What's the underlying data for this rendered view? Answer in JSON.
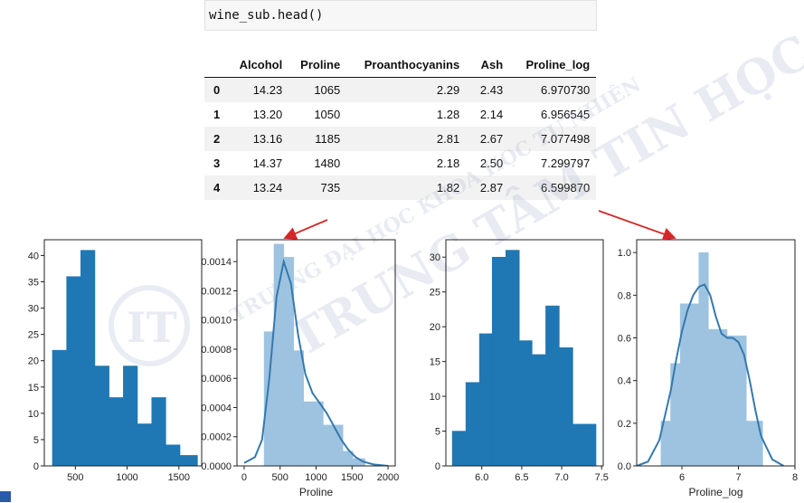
{
  "code": "wine_sub.head()",
  "table": {
    "columns": [
      "",
      "Alcohol",
      "Proline",
      "Proanthocyanins",
      "Ash",
      "Proline_log"
    ],
    "rows": [
      [
        "0",
        "14.23",
        "1065",
        "2.29",
        "2.43",
        "6.970730"
      ],
      [
        "1",
        "13.20",
        "1050",
        "1.28",
        "2.14",
        "6.956545"
      ],
      [
        "2",
        "13.16",
        "1185",
        "2.81",
        "2.67",
        "7.077498"
      ],
      [
        "3",
        "14.37",
        "1480",
        "2.18",
        "2.50",
        "7.299797"
      ],
      [
        "4",
        "13.24",
        "735",
        "1.82",
        "2.87",
        "6.599870"
      ]
    ]
  },
  "watermark": {
    "line1": "TRƯỜNG ĐẠI HỌC KHOA HỌC TỰ NHIÊN",
    "line2": "TRUNG TÂM TIN HỌC",
    "logo_letters": "IT"
  },
  "colors": {
    "hist_dark": "#1f77b4",
    "hist_light": "#9dc3e0",
    "kde": "#3579ad",
    "arrow": "#d62728"
  },
  "chart_data": [
    {
      "type": "bar",
      "title": "",
      "xlabel": "",
      "ylabel": "",
      "bin_edges": [
        278,
        415,
        552,
        689,
        826,
        963,
        1100,
        1237,
        1374,
        1511,
        1680
      ],
      "values": [
        22,
        36,
        41,
        19,
        13,
        19,
        8,
        13,
        4,
        2
      ],
      "xlim": [
        200,
        1720
      ],
      "ylim": [
        0,
        43
      ],
      "xticks": [
        500,
        1000,
        1500
      ],
      "yticks": [
        0,
        5,
        10,
        15,
        20,
        25,
        30,
        35,
        40
      ]
    },
    {
      "type": "area",
      "title": "",
      "xlabel": "Proline",
      "ylabel": "",
      "bin_edges": [
        278,
        415,
        552,
        689,
        826,
        963,
        1100,
        1237,
        1374,
        1511,
        1680
      ],
      "density": [
        0.00092,
        0.00152,
        0.00143,
        0.00079,
        0.00044,
        0.00044,
        0.00028,
        0.00028,
        0.0001,
        5e-05
      ],
      "kde": {
        "x": [
          0,
          150,
          250,
          350,
          450,
          550,
          650,
          750,
          850,
          950,
          1050,
          1150,
          1250,
          1350,
          1450,
          1550,
          1650,
          1800,
          2000
        ],
        "y": [
          2e-05,
          6e-05,
          0.00018,
          0.0006,
          0.00116,
          0.0014,
          0.00125,
          0.0009,
          0.00063,
          0.0005,
          0.00043,
          0.00036,
          0.00027,
          0.00018,
          0.00011,
          6e-05,
          3e-05,
          1e-05,
          0.0
        ]
      },
      "xlim": [
        -100,
        2100
      ],
      "ylim": [
        0,
        0.00155
      ],
      "xticks": [
        0,
        500,
        1000,
        1500,
        2000
      ],
      "yticks": [
        0.0,
        0.0002,
        0.0004,
        0.0006,
        0.0008,
        0.001,
        0.0012,
        0.0014
      ],
      "ytick_labels": [
        "0.0000",
        "0.0002",
        "0.0004",
        "0.0006",
        "0.0008",
        "0.0010",
        "0.0012",
        "0.0014"
      ]
    },
    {
      "type": "bar",
      "title": "",
      "xlabel": "",
      "ylabel": "",
      "bin_edges": [
        5.63,
        5.8,
        5.97,
        6.13,
        6.3,
        6.47,
        6.63,
        6.8,
        6.97,
        7.14,
        7.31,
        7.43
      ],
      "values": [
        5,
        12,
        19,
        30,
        31,
        18,
        16,
        23,
        17,
        6,
        6
      ],
      "xlim": [
        5.55,
        7.52
      ],
      "ylim": [
        0,
        32.5
      ],
      "xticks": [
        6.0,
        6.5,
        7.0,
        7.5
      ],
      "xtick_labels": [
        "6.0",
        "6.5",
        "7.0",
        "7.5"
      ],
      "yticks": [
        0,
        5,
        10,
        15,
        20,
        25,
        30
      ]
    },
    {
      "type": "area",
      "title": "",
      "xlabel": "Proline_log",
      "ylabel": "",
      "bin_edges": [
        5.63,
        5.8,
        5.97,
        6.13,
        6.3,
        6.47,
        6.63,
        6.8,
        6.97,
        7.14,
        7.31,
        7.43
      ],
      "density": [
        0.21,
        0.48,
        0.76,
        0.76,
        1.0,
        0.64,
        0.64,
        0.61,
        0.61,
        0.21,
        0.21
      ],
      "kde": {
        "x": [
          5.2,
          5.4,
          5.6,
          5.8,
          5.9,
          6.0,
          6.1,
          6.2,
          6.3,
          6.4,
          6.5,
          6.6,
          6.7,
          6.8,
          6.9,
          7.0,
          7.1,
          7.2,
          7.3,
          7.4,
          7.6,
          7.8
        ],
        "y": [
          0.0,
          0.02,
          0.12,
          0.35,
          0.5,
          0.63,
          0.73,
          0.8,
          0.84,
          0.85,
          0.8,
          0.7,
          0.62,
          0.6,
          0.6,
          0.58,
          0.52,
          0.4,
          0.26,
          0.14,
          0.03,
          0.0
        ]
      },
      "xlim": [
        5.2,
        8.0
      ],
      "ylim": [
        0,
        1.06
      ],
      "xticks": [
        6,
        7,
        8
      ],
      "yticks": [
        0.0,
        0.2,
        0.4,
        0.6,
        0.8,
        1.0
      ],
      "ytick_labels": [
        "0.0",
        "0.2",
        "0.4",
        "0.6",
        "0.8",
        "1.0"
      ]
    }
  ]
}
